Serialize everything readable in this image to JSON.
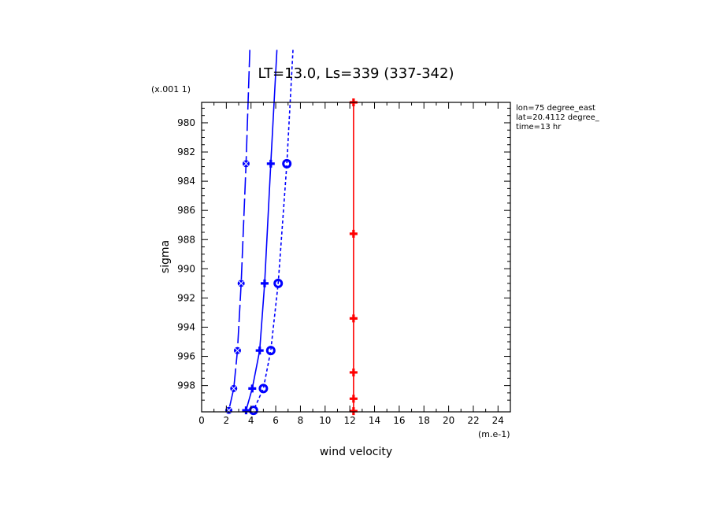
{
  "chart_data": {
    "type": "line",
    "title": "LT=13.0, Ls=339 (337-342)",
    "xlabel": "wind velocity",
    "ylabel": "sigma",
    "x_unit": "(m.e-1)",
    "y_unit": "(x.001 1)",
    "xlim": [
      0,
      25
    ],
    "ylim": [
      999.8,
      978.6
    ],
    "x_ticks": [
      "0",
      "2",
      "4",
      "6",
      "8",
      "10",
      "12",
      "14",
      "16",
      "18",
      "20",
      "22",
      "24"
    ],
    "y_ticks": [
      "980",
      "982",
      "984",
      "986",
      "988",
      "990",
      "992",
      "994",
      "996",
      "998"
    ],
    "info_lines": [
      "lon=75 degree_east",
      "lat=20.4112 degree_",
      "time=13 hr"
    ],
    "colors": {
      "blue": "#0000ff",
      "red": "#ff0000",
      "axis": "#000000"
    },
    "series": [
      {
        "style": "long-dash",
        "color": "#0000ff",
        "marker": "x",
        "points": [
          [
            3.9,
            975.0
          ],
          [
            3.6,
            982.8
          ],
          [
            3.2,
            991.0
          ],
          [
            2.9,
            995.6
          ],
          [
            2.6,
            998.2
          ],
          [
            2.2,
            999.7
          ]
        ]
      },
      {
        "style": "solid",
        "color": "#0000ff",
        "marker": "plus",
        "points": [
          [
            6.1,
            975.0
          ],
          [
            5.6,
            982.8
          ],
          [
            5.1,
            991.0
          ],
          [
            4.7,
            995.6
          ],
          [
            4.1,
            998.2
          ],
          [
            3.6,
            999.7
          ]
        ]
      },
      {
        "style": "short-dash",
        "color": "#0000ff",
        "marker": "circle",
        "points": [
          [
            7.4,
            975.0
          ],
          [
            6.9,
            982.8
          ],
          [
            6.2,
            991.0
          ],
          [
            5.6,
            995.6
          ],
          [
            5.0,
            998.2
          ],
          [
            4.2,
            999.7
          ]
        ]
      },
      {
        "style": "solid",
        "color": "#ff0000",
        "marker": "plus",
        "points": [
          [
            12.3,
            978.6
          ],
          [
            12.3,
            987.6
          ],
          [
            12.3,
            993.4
          ],
          [
            12.3,
            997.1
          ],
          [
            12.3,
            998.9
          ],
          [
            12.3,
            999.75
          ]
        ]
      }
    ]
  }
}
